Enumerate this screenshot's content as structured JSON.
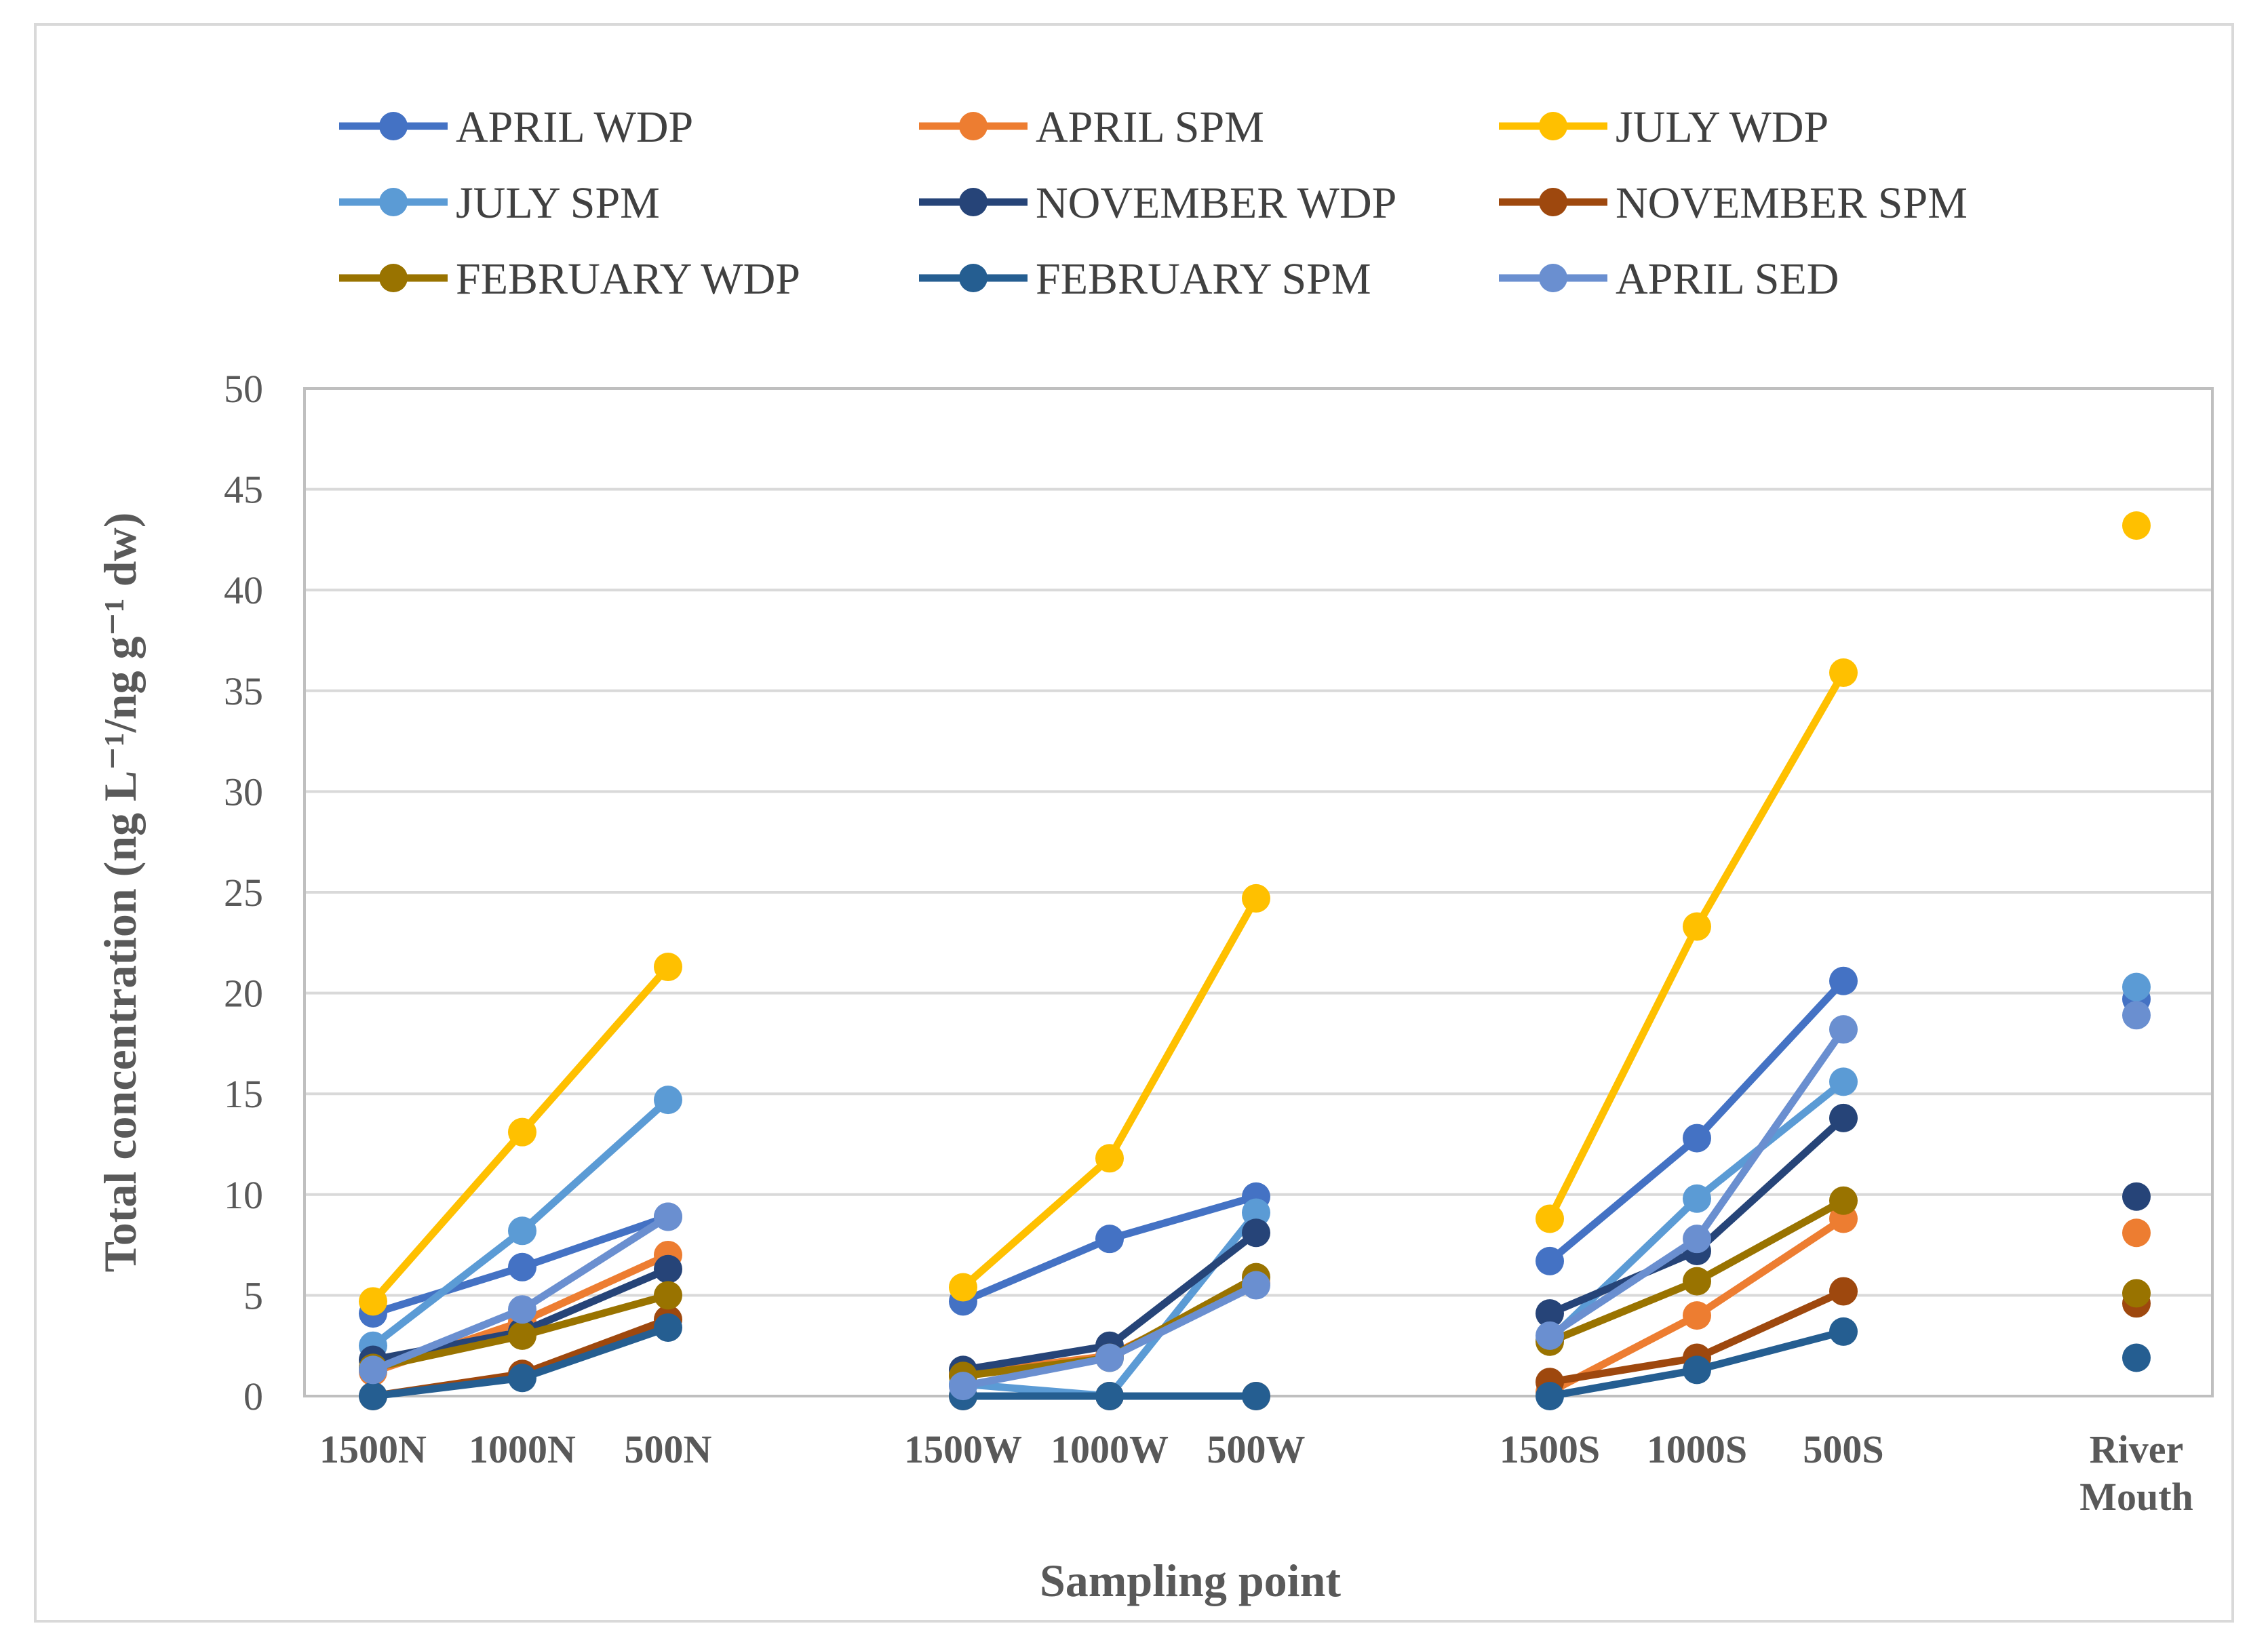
{
  "chart_data": {
    "type": "line",
    "title": "",
    "xlabel": "Sampling point",
    "ylabel": "Total concentration (ng L⁻¹/ng g⁻¹ dw)",
    "ylim": [
      0,
      50
    ],
    "yticks": [
      0,
      5,
      10,
      15,
      20,
      25,
      30,
      35,
      40,
      45,
      50
    ],
    "grid": true,
    "legend_position": "top",
    "categories": [
      "1500N",
      "1000N",
      "500N",
      "1500W",
      "1000W",
      "500W",
      "1500S",
      "1000S",
      "500S",
      "River Mouth"
    ],
    "category_label_lines": [
      [
        "1500N"
      ],
      [
        "1000N"
      ],
      [
        "500N"
      ],
      [
        "1500W"
      ],
      [
        "1000W"
      ],
      [
        "500W"
      ],
      [
        "1500S"
      ],
      [
        "1000S"
      ],
      [
        "500S"
      ],
      [
        "River",
        "Mouth"
      ]
    ],
    "groups": [
      [
        0,
        1,
        2
      ],
      [
        3,
        4,
        5
      ],
      [
        6,
        7,
        8
      ],
      [
        9
      ]
    ],
    "series": [
      {
        "name": "APRIL  WDP",
        "color": "#4472C4",
        "values": [
          4.1,
          6.4,
          8.9,
          4.7,
          7.8,
          9.9,
          6.7,
          12.8,
          20.6,
          19.7
        ]
      },
      {
        "name": "APRIL  SPM",
        "color": "#ED7D31",
        "values": [
          1.2,
          3.7,
          7.0,
          1.1,
          2.0,
          5.6,
          0.2,
          4.0,
          8.8,
          8.1
        ]
      },
      {
        "name": "JULY WDP",
        "color": "#FFC000",
        "values": [
          4.7,
          13.1,
          21.3,
          5.4,
          11.8,
          24.7,
          8.8,
          23.3,
          35.9,
          43.2
        ]
      },
      {
        "name": "JULY SPM",
        "color": "#5B9BD5",
        "values": [
          2.5,
          8.2,
          14.7,
          0.6,
          0.0,
          9.1,
          2.8,
          9.8,
          15.6,
          20.3
        ]
      },
      {
        "name": "NOVEMBER WDP",
        "color": "#264478",
        "values": [
          1.8,
          3.2,
          6.3,
          1.3,
          2.5,
          8.1,
          4.1,
          7.2,
          13.8,
          9.9
        ]
      },
      {
        "name": "NOVEMBER SPM",
        "color": "#9E480E",
        "values": [
          0.0,
          1.1,
          3.8,
          0.0,
          0.0,
          0.0,
          0.7,
          1.9,
          5.2,
          4.6
        ]
      },
      {
        "name": "FEBRUARY WDP",
        "color": "#997300",
        "values": [
          1.4,
          3.0,
          5.0,
          1.0,
          1.9,
          5.9,
          2.7,
          5.7,
          9.7,
          5.1
        ]
      },
      {
        "name": "FEBRUARY SPM",
        "color": "#255E91",
        "values": [
          0.0,
          0.9,
          3.4,
          0.0,
          0.0,
          0.0,
          0.0,
          1.3,
          3.2,
          1.9
        ]
      },
      {
        "name": "APRIL  SED",
        "color": "#6A8FD0",
        "values": [
          1.3,
          4.3,
          8.9,
          0.5,
          1.9,
          5.5,
          3.0,
          7.8,
          18.2,
          18.9
        ]
      }
    ]
  }
}
